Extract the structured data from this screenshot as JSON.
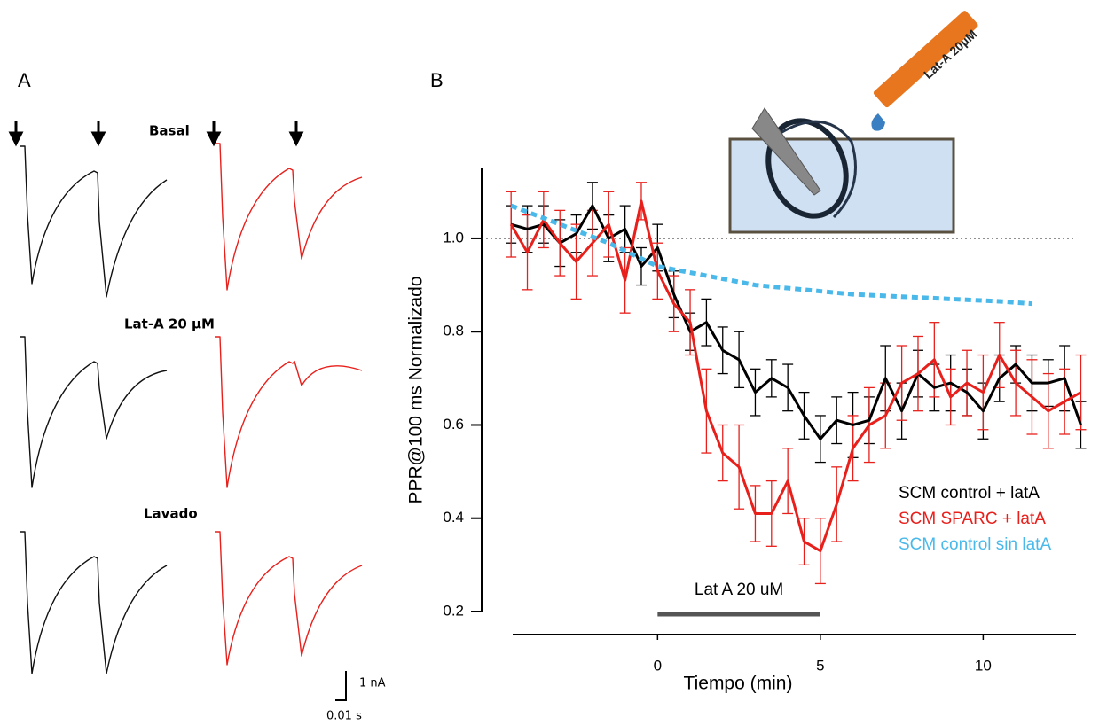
{
  "panel_a": {
    "label": "A",
    "conditions": [
      "Basal",
      "Lat-A 20 µM",
      "Lavado"
    ],
    "scale_y": "1 nA",
    "scale_x": "0.01 s"
  },
  "panel_b": {
    "label": "B"
  },
  "inset": {
    "label": "Lat-A 20µM"
  },
  "chart_data": {
    "type": "line",
    "xlabel": "Tiempo (min)",
    "ylabel": "PPR@100 ms Normalizado",
    "xlim": [
      -4.45,
      12.85
    ],
    "ylim": [
      0.2,
      1.15
    ],
    "xticks": [
      0,
      5,
      10
    ],
    "yticks": [
      0.2,
      0.4,
      0.6,
      0.8,
      {
        "value": 1,
        "label": "1.0"
      }
    ],
    "hline": 1,
    "legend": "lower right",
    "series": [
      {
        "name": "SCM control + latA",
        "color": "#000000",
        "x": [
          -4.5,
          -4,
          -3.5,
          -3,
          -2.5,
          -2,
          -1.5,
          -1,
          -0.5,
          0,
          0.5,
          1,
          1.5,
          2,
          2.5,
          3,
          3.5,
          4,
          4.5,
          5,
          5.5,
          6,
          6.5,
          7,
          7.5,
          8,
          8.5,
          9,
          9.5,
          10,
          10.5,
          11,
          11.5,
          12,
          12.5,
          13
        ],
        "values": [
          1.03,
          1.02,
          1.03,
          0.99,
          1.01,
          1.07,
          1.0,
          1.02,
          0.94,
          0.98,
          0.88,
          0.8,
          0.82,
          0.76,
          0.74,
          0.67,
          0.7,
          0.68,
          0.62,
          0.57,
          0.61,
          0.6,
          0.61,
          0.7,
          0.63,
          0.71,
          0.68,
          0.69,
          0.67,
          0.63,
          0.7,
          0.73,
          0.69,
          0.69,
          0.7,
          0.6
        ],
        "errors": [
          0.04,
          0.05,
          0.04,
          0.05,
          0.04,
          0.05,
          0.05,
          0.05,
          0.04,
          0.05,
          0.05,
          0.04,
          0.05,
          0.05,
          0.06,
          0.05,
          0.04,
          0.05,
          0.05,
          0.05,
          0.05,
          0.07,
          0.05,
          0.07,
          0.06,
          0.05,
          0.05,
          0.06,
          0.05,
          0.06,
          0.05,
          0.04,
          0.06,
          0.05,
          0.07,
          0.05
        ]
      },
      {
        "name": "SCM SPARC + latA",
        "color": "#e8201c",
        "x": [
          -4.5,
          -4,
          -3.5,
          -3,
          -2.5,
          -2,
          -1.5,
          -1,
          -0.5,
          0,
          0.5,
          1,
          1.5,
          2,
          2.5,
          3,
          3.5,
          4,
          4.5,
          5,
          5.5,
          6,
          6.5,
          7,
          7.5,
          8,
          8.5,
          9,
          9.5,
          10,
          10.5,
          11,
          11.5,
          12,
          12.5,
          13
        ],
        "values": [
          1.03,
          0.97,
          1.04,
          0.99,
          0.95,
          0.99,
          1.03,
          0.91,
          1.08,
          0.93,
          0.86,
          0.82,
          0.63,
          0.54,
          0.51,
          0.41,
          0.41,
          0.48,
          0.35,
          0.33,
          0.43,
          0.55,
          0.6,
          0.62,
          0.69,
          0.71,
          0.74,
          0.66,
          0.69,
          0.67,
          0.75,
          0.69,
          0.66,
          0.63,
          0.65,
          0.67
        ],
        "errors": [
          0.07,
          0.08,
          0.06,
          0.07,
          0.08,
          0.07,
          0.07,
          0.07,
          0.04,
          0.06,
          0.06,
          0.07,
          0.09,
          0.06,
          0.09,
          0.06,
          0.07,
          0.07,
          0.05,
          0.07,
          0.08,
          0.07,
          0.08,
          0.07,
          0.08,
          0.08,
          0.08,
          0.06,
          0.07,
          0.08,
          0.07,
          0.07,
          0.08,
          0.08,
          0.07,
          0.08
        ]
      },
      {
        "name": "SCM control sin latA",
        "color": "#4ab9ea",
        "dashed": true,
        "x": [
          -4.5,
          -3,
          -1.5,
          0,
          1.5,
          3,
          4.5,
          6,
          7.5,
          9,
          10.5,
          11.5
        ],
        "values": [
          1.07,
          1.03,
          0.99,
          0.94,
          0.92,
          0.9,
          0.89,
          0.88,
          0.875,
          0.87,
          0.865,
          0.86
        ]
      }
    ],
    "annotations": [
      {
        "text": "Lat A 20 uM",
        "span": [
          0,
          5
        ]
      }
    ]
  }
}
